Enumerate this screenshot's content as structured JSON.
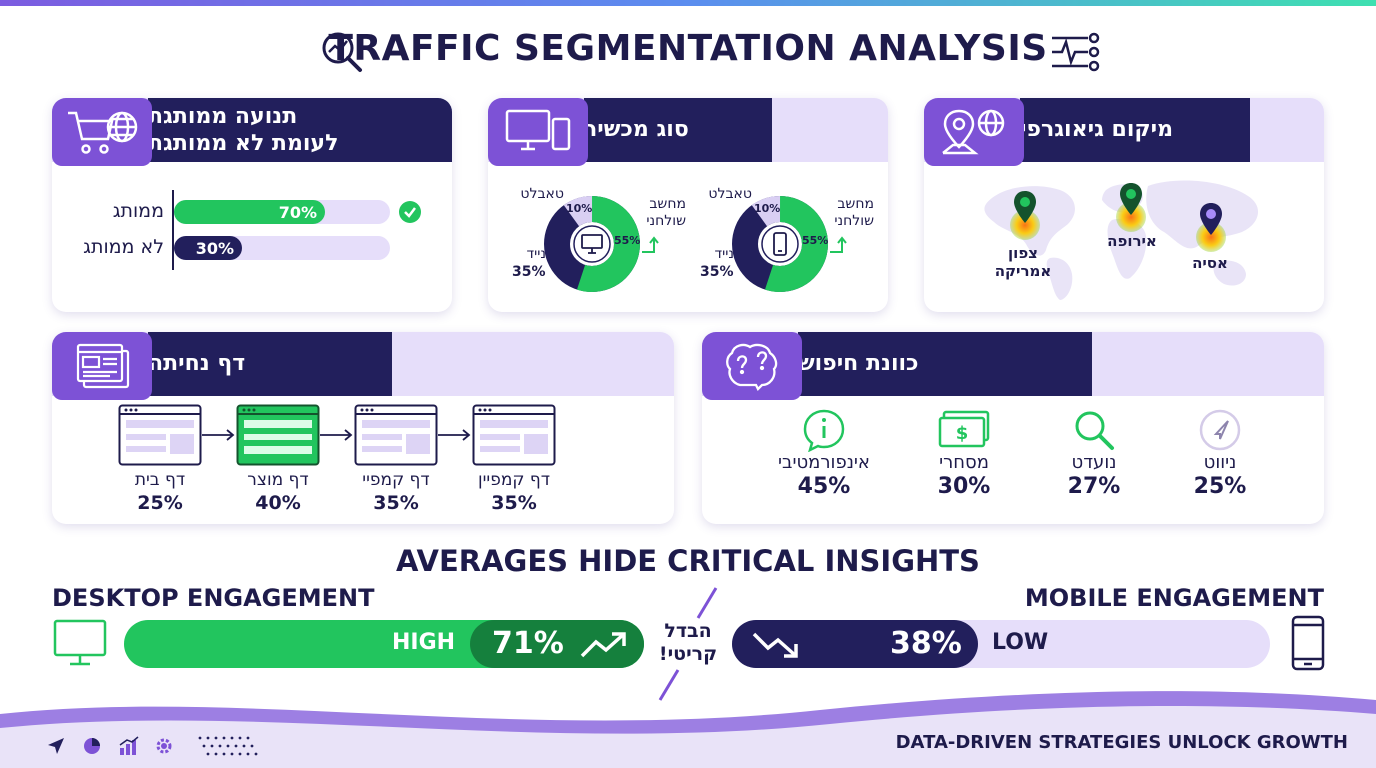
{
  "title": "TRAFFIC SEGMENTATION ANALYSIS",
  "paid_card": {
    "title_line1": "תנועה ממותגת",
    "title_line2": "לעומת לא ממותגת",
    "rows": [
      {
        "label": "ממותג",
        "value": 70,
        "value_label": "70%"
      },
      {
        "label": "לא ממותג",
        "value": 30,
        "value_label": "30%"
      }
    ]
  },
  "device_card": {
    "title": "סוג מכשיר",
    "donuts": [
      {
        "desktop_label": "מחשב שולחני",
        "desktop_pct": "55%",
        "tablet_label": "טאבלט",
        "tablet_pct": "10%",
        "mobile_label": "נייד",
        "mobile_pct": "35%",
        "center_icon": "monitor-icon",
        "values": [
          55,
          10,
          35
        ]
      },
      {
        "desktop_label": "מחשב שולחני",
        "desktop_pct": "55%",
        "tablet_label": "טאבלט",
        "tablet_pct": "10%",
        "mobile_label": "נייד",
        "mobile_pct": "35%",
        "center_icon": "phone-icon",
        "values": [
          55,
          10,
          35
        ]
      }
    ],
    "colors": {
      "desktop": "#22c55e",
      "tablet": "#d9cff3",
      "mobile": "#221f5c"
    }
  },
  "geo_card": {
    "title": "מיקום גיאוגרפי",
    "pins": [
      {
        "label": "צפון אמריקה"
      },
      {
        "label": "אירופה"
      },
      {
        "label": "אסיה"
      }
    ]
  },
  "landing_card": {
    "title": "דף נחיתה",
    "pages": [
      {
        "label": "דף בית",
        "pct": "25%"
      },
      {
        "label": "דף מוצר",
        "pct": "40%"
      },
      {
        "label": "דף קמפיי",
        "pct": "35%"
      },
      {
        "label": "דף קמפיין",
        "pct": "35%"
      }
    ]
  },
  "intent_card": {
    "title": "כוונת חיפוש",
    "items": [
      {
        "label": "אינפורמטיבי",
        "pct": "45%",
        "icon": "info-bubble-icon"
      },
      {
        "label": "מסחרי",
        "pct": "30%",
        "icon": "money-icon"
      },
      {
        "label": "נועדט",
        "pct": "27%",
        "icon": "search-icon"
      },
      {
        "label": "ניווט",
        "pct": "25%",
        "icon": "navigation-icon"
      }
    ]
  },
  "insights": {
    "heading": "AVERAGES HIDE CRITICAL INSIGHTS",
    "desktop": {
      "title": "DESKTOP ENGAGEMENT",
      "level": "HIGH",
      "pct": "71%",
      "value": 71
    },
    "mobile": {
      "title": "MOBILE ENGAGEMENT",
      "level": "LOW",
      "pct": "38%",
      "value": 38
    },
    "gap_line1": "הבדל",
    "gap_line2": "קריטי!"
  },
  "footer": {
    "tagline": "DATA-DRIVEN STRATEGIES UNLOCK GROWTH"
  },
  "colors": {
    "navy": "#221f5c",
    "green": "#22c55e",
    "purple": "#7d52d6",
    "lavender": "#e6defa"
  }
}
